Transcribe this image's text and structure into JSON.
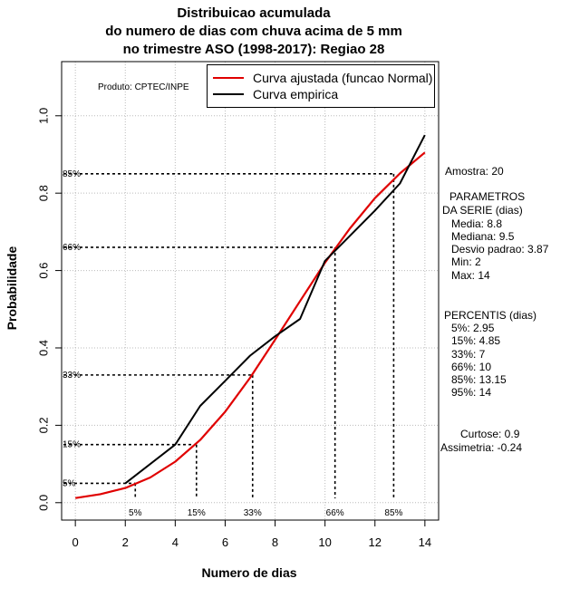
{
  "header": {
    "title_line1": "Distribuicao acumulada",
    "title_line2": "do numero de dias com chuva acima de 5 mm",
    "title_line3": "no trimestre ASO (1998-2017): Regiao 28"
  },
  "producer": "Produto: CPTEC/INPE",
  "legend": {
    "fitted": "Curva ajustada (funcao Normal)",
    "empirical": "Curva empirica"
  },
  "colors": {
    "fitted": "#e00000",
    "empirical": "#000000",
    "grid": "#bbbbbb"
  },
  "stats": {
    "sample": "Amostra: 20",
    "params_title1": "PARAMETROS",
    "params_title2": "DA SERIE (dias)",
    "media": "Media: 8.8",
    "mediana": "Mediana: 9.5",
    "desvio": "Desvio padrao: 3.87",
    "min": "Min: 2",
    "max": "Max: 14",
    "percentis_title": "PERCENTIS (dias)",
    "p5": "5%: 2.95",
    "p15": "15%: 4.85",
    "p33": "33%: 7",
    "p66": "66%: 10",
    "p85": "85%: 13.15",
    "p95": "95%: 14",
    "curtose": "Curtose: 0.9",
    "assimetria": "Assimetria: -0.24"
  },
  "chart_data": {
    "type": "line",
    "xlabel": "Numero de dias",
    "ylabel": "Probabilidade",
    "xlim": [
      -0.55,
      14.55
    ],
    "ylim": [
      -0.045,
      1.14
    ],
    "x_ticks": [
      0,
      2,
      4,
      6,
      8,
      10,
      12,
      14
    ],
    "y_ticks": [
      0.0,
      0.2,
      0.4,
      0.6,
      0.8,
      1.0
    ],
    "y_tick_labels": [
      "0.0",
      "0.2",
      "0.4",
      "0.6",
      "0.8",
      "1.0"
    ],
    "series": [
      {
        "name": "Curva ajustada (funcao Normal)",
        "x": [
          0,
          1,
          2,
          3,
          4,
          5,
          6,
          7,
          8,
          9,
          10,
          11,
          12,
          13,
          14
        ],
        "values": [
          0.012,
          0.022,
          0.038,
          0.065,
          0.106,
          0.162,
          0.235,
          0.323,
          0.421,
          0.521,
          0.62,
          0.709,
          0.787,
          0.851,
          0.905
        ]
      },
      {
        "name": "Curva empirica",
        "x": [
          2,
          4,
          5,
          6,
          7,
          8,
          9,
          10,
          11,
          12,
          13,
          14
        ],
        "values": [
          0.05,
          0.15,
          0.25,
          0.315,
          0.38,
          0.43,
          0.475,
          0.625,
          0.69,
          0.755,
          0.825,
          0.95
        ]
      }
    ],
    "percentile_markers": [
      {
        "label": "5%",
        "level": 0.05,
        "days": 2.4
      },
      {
        "label": "15%",
        "level": 0.15,
        "days": 4.85
      },
      {
        "label": "33%",
        "level": 0.33,
        "days": 7.1
      },
      {
        "label": "66%",
        "level": 0.66,
        "days": 10.4
      },
      {
        "label": "85%",
        "level": 0.85,
        "days": 12.75
      }
    ]
  }
}
